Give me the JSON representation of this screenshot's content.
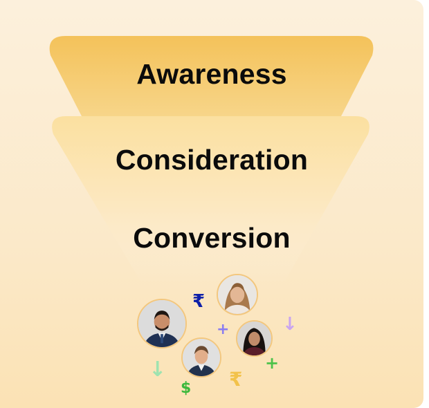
{
  "funnel": {
    "stages": [
      {
        "label": "Awareness"
      },
      {
        "label": "Consideration"
      },
      {
        "label": "Conversion"
      }
    ]
  },
  "icons": {
    "rupee": "₹",
    "plus": "+",
    "dollar": "$",
    "arrow_down": "↓"
  },
  "colors": {
    "background": "#fcf0dc",
    "funnel_top": "#f4c35a",
    "funnel_body": "#fbe2a6",
    "rupee_blue": "#0d1fa8",
    "rupee_gold": "#f2c24a",
    "plus_purple": "#8a7cf0",
    "plus_green": "#4cc24a",
    "dollar_green": "#3cb83c",
    "arrow_green": "#9ee3b0",
    "arrow_purple": "#c9a4f0"
  }
}
